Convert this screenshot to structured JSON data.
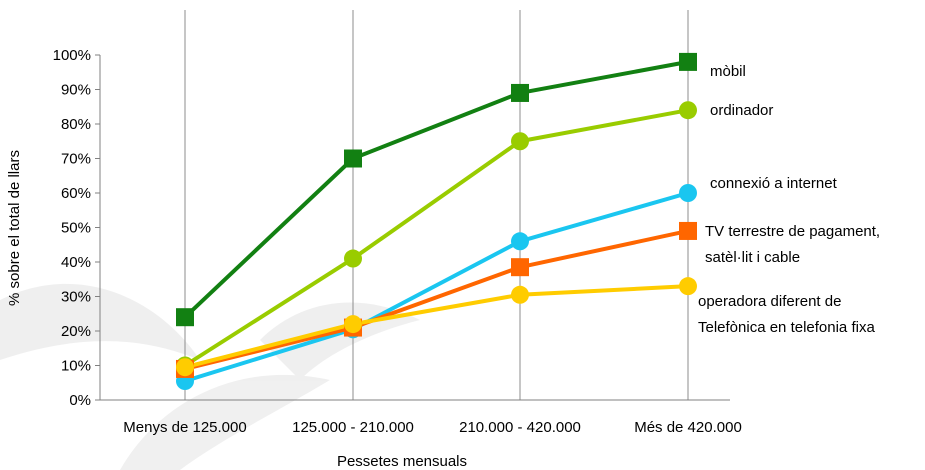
{
  "chart_data": {
    "type": "line",
    "title": "",
    "xlabel": "Pessetes mensuals",
    "ylabel": "% sobre el total de llars",
    "categories": [
      "Menys de 125.000",
      "125.000 - 210.000",
      "210.000 - 420.000",
      "Més de 420.000"
    ],
    "ylim": [
      0,
      100
    ],
    "yticks": [
      0,
      10,
      20,
      30,
      40,
      50,
      60,
      70,
      80,
      90,
      100
    ],
    "ytick_labels": [
      "0%",
      "10%",
      "20%",
      "30%",
      "40%",
      "50%",
      "60%",
      "70%",
      "80%",
      "90%",
      "100%"
    ],
    "grid": "vertical lines at categories",
    "legend": "labels at line ends (right)",
    "series": [
      {
        "name": "mòbil",
        "name_lines": [
          "mòbil"
        ],
        "marker": "square",
        "color": "#128012",
        "values": [
          24,
          70,
          89,
          98
        ]
      },
      {
        "name": "ordinador",
        "name_lines": [
          "ordinador"
        ],
        "marker": "circle",
        "color": "#99CC00",
        "values": [
          10,
          41,
          75,
          84
        ]
      },
      {
        "name": "connexió a internet",
        "name_lines": [
          "connexió a internet"
        ],
        "marker": "circle",
        "color": "#1AC6F0",
        "values": [
          5.5,
          20.5,
          46,
          60
        ]
      },
      {
        "name": "TV terrestre de pagament, satèl·lit i cable",
        "name_lines": [
          "TV terrestre de pagament,",
          "satèl·lit i cable"
        ],
        "marker": "square",
        "color": "#FF6600",
        "values": [
          9,
          21,
          38.5,
          49
        ]
      },
      {
        "name": "operadora diferent de Telefònica en telefonia fixa",
        "name_lines": [
          "operadora diferent de",
          "Telefònica en telefonia fixa"
        ],
        "marker": "circle",
        "color": "#FFCC00",
        "values": [
          9.5,
          22,
          30.5,
          33
        ]
      }
    ]
  }
}
